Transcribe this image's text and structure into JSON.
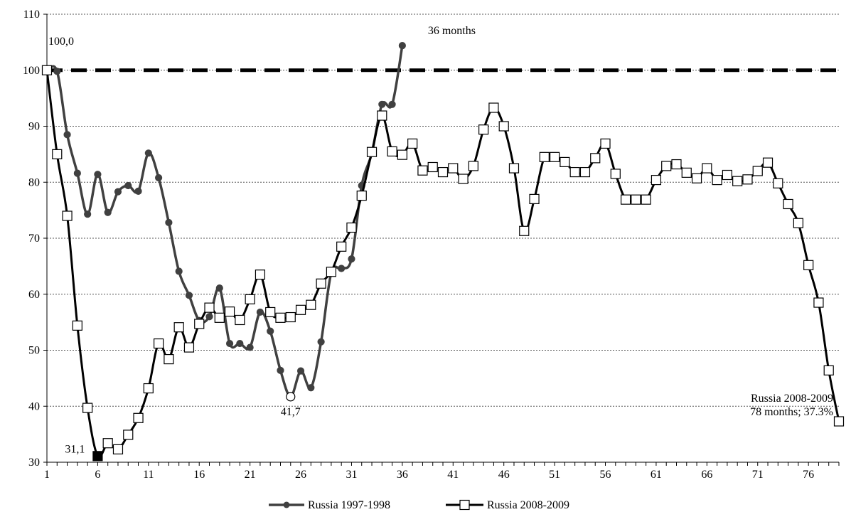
{
  "chart_data": {
    "type": "line",
    "title": "",
    "xlabel": "",
    "ylabel": "",
    "xlim": [
      1,
      79
    ],
    "ylim": [
      30,
      110
    ],
    "x_ticks": [
      1,
      6,
      11,
      16,
      21,
      26,
      31,
      36,
      41,
      46,
      51,
      56,
      61,
      66,
      71,
      76
    ],
    "y_ticks": [
      30,
      40,
      50,
      60,
      70,
      80,
      90,
      100,
      110
    ],
    "grid": "horizontal dotted",
    "reference_line": {
      "y": 100,
      "style": "dashed"
    },
    "legend_position": "bottom",
    "series": [
      {
        "name": "Russia 1997-1998",
        "color": "#404040",
        "marker": "filled-circle",
        "x": [
          1,
          2,
          3,
          4,
          5,
          6,
          7,
          8,
          9,
          10,
          11,
          12,
          13,
          14,
          15,
          16,
          17,
          18,
          19,
          20,
          21,
          22,
          23,
          24,
          25,
          26,
          27,
          28,
          29,
          30,
          31,
          32,
          33,
          34,
          35,
          36
        ],
        "values": [
          100.0,
          99.8,
          88.5,
          81.6,
          74.3,
          81.4,
          74.6,
          78.3,
          79.4,
          78.4,
          85.2,
          80.8,
          72.8,
          64.1,
          59.8,
          55.3,
          56.0,
          61.1,
          51.2,
          51.2,
          50.5,
          56.8,
          53.4,
          46.4,
          41.7,
          46.3,
          43.3,
          51.5,
          63.8,
          64.6,
          66.3,
          79.4,
          85.2,
          93.9,
          93.9,
          104.4
        ]
      },
      {
        "name": "Russia 2008-2009",
        "color": "#000000",
        "marker": "open-square",
        "x": [
          1,
          2,
          3,
          4,
          5,
          6,
          7,
          8,
          9,
          10,
          11,
          12,
          13,
          14,
          15,
          16,
          17,
          18,
          19,
          20,
          21,
          22,
          23,
          24,
          25,
          26,
          27,
          28,
          29,
          30,
          31,
          32,
          33,
          34,
          35,
          36,
          37,
          38,
          39,
          40,
          41,
          42,
          43,
          44,
          45,
          46,
          47,
          48,
          49,
          50,
          51,
          52,
          53,
          54,
          55,
          56,
          57,
          58,
          59,
          60,
          61,
          62,
          63,
          64,
          65,
          66,
          67,
          68,
          69,
          70,
          71,
          72,
          73,
          74,
          75,
          76,
          77,
          78,
          79
        ],
        "values": [
          100.0,
          85.0,
          74.0,
          54.4,
          39.7,
          31.1,
          33.4,
          32.3,
          34.9,
          37.9,
          43.2,
          51.2,
          48.4,
          54.1,
          50.5,
          54.7,
          57.6,
          55.8,
          56.9,
          55.4,
          59.1,
          63.5,
          56.8,
          55.8,
          55.9,
          57.2,
          58.1,
          61.9,
          64.0,
          68.5,
          71.9,
          77.6,
          85.4,
          91.9,
          85.5,
          84.9,
          86.9,
          82.1,
          82.7,
          81.8,
          82.5,
          80.6,
          82.9,
          89.4,
          93.3,
          90.0,
          82.5,
          71.3,
          77.0,
          84.5,
          84.5,
          83.6,
          81.8,
          81.8,
          84.3,
          86.9,
          81.5,
          76.9,
          76.9,
          76.9,
          80.4,
          82.9,
          83.2,
          81.7,
          80.7,
          82.5,
          80.4,
          81.3,
          80.2,
          80.5,
          82.0,
          83.5,
          79.8,
          76.1,
          72.7,
          65.2,
          58.5,
          46.4,
          37.3
        ]
      }
    ],
    "annotations": [
      {
        "text": "100,0",
        "x": 1,
        "y": 100.0
      },
      {
        "text": "36 months",
        "x": 36,
        "y": 104.4
      },
      {
        "text": "31,1",
        "x": 6,
        "y": 31.1
      },
      {
        "text": "41,7",
        "x": 25,
        "y": 41.7
      },
      {
        "text": "Russia 2008-2009",
        "x": 79,
        "y": 37.3
      },
      {
        "text": "78 months; 37.3%",
        "x": 79,
        "y": 37.3
      }
    ]
  }
}
